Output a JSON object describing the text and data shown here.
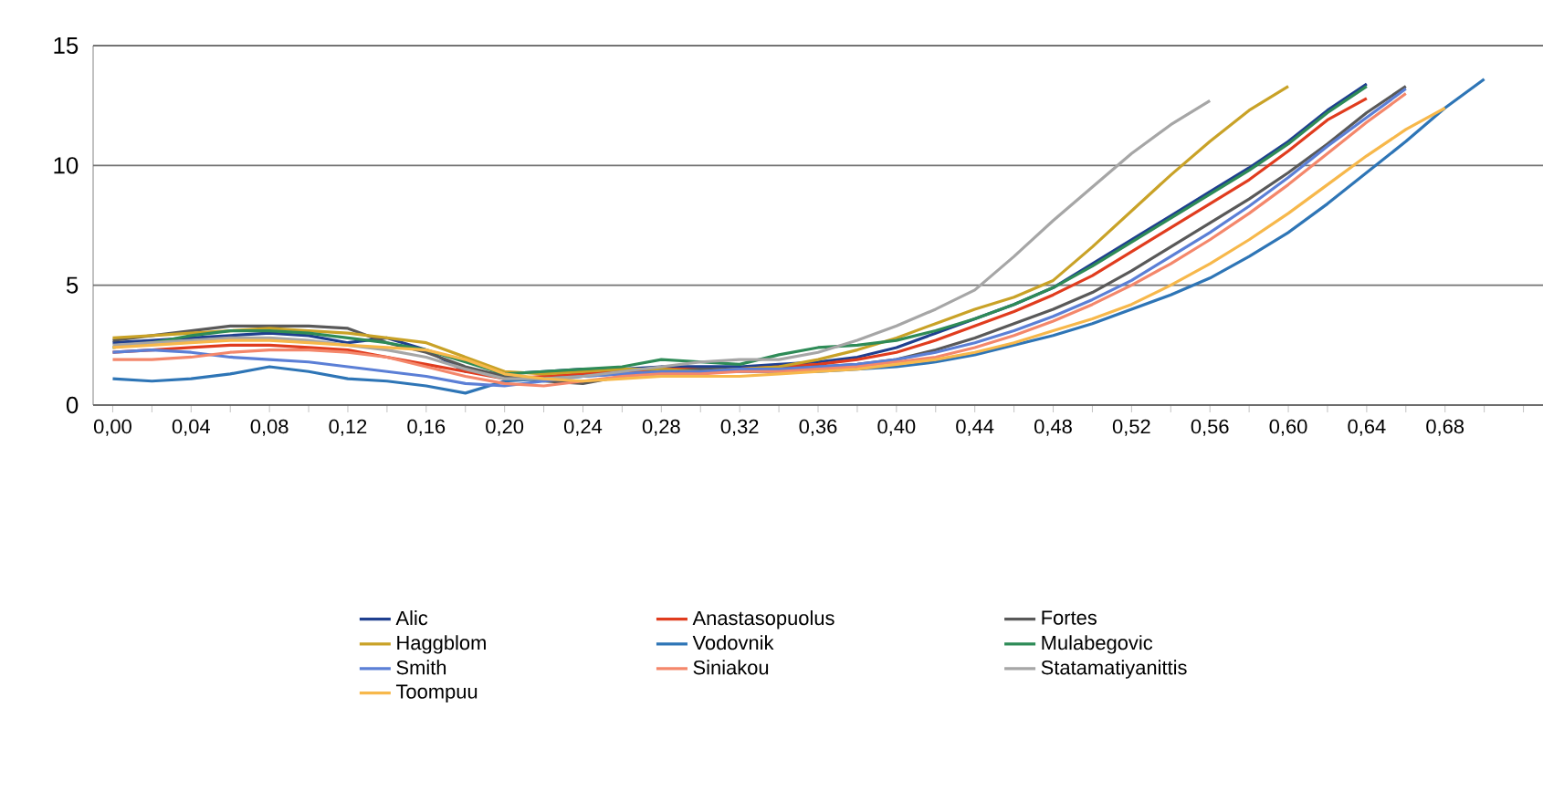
{
  "chart_data": {
    "type": "line",
    "categories": [
      "0,00",
      null,
      "0,04",
      null,
      "0,08",
      null,
      "0,12",
      null,
      "0,16",
      null,
      "0,20",
      null,
      "0,24",
      null,
      "0,28",
      null,
      "0,32",
      null,
      "0,36",
      null,
      "0,40",
      null,
      "0,44",
      null,
      "0,48",
      null,
      "0,52",
      null,
      "0,56",
      null,
      "0,60",
      null,
      "0,64",
      null,
      "0,68",
      null,
      null
    ],
    "ylim": [
      0,
      15
    ],
    "yticks": [
      0,
      5,
      10,
      15
    ],
    "grid": "y",
    "legend": "bottom",
    "series": [
      {
        "name": "Alic",
        "color": "#1f3f8f",
        "values": [
          2.6,
          2.7,
          2.8,
          2.9,
          3.0,
          2.9,
          2.6,
          2.8,
          2.3,
          1.4,
          1.3,
          1.4,
          1.5,
          1.5,
          1.6,
          1.6,
          1.6,
          1.7,
          1.8,
          2.0,
          2.4,
          3.0,
          3.6,
          4.2,
          4.9,
          5.9,
          6.9,
          7.9,
          8.9,
          9.9,
          11.0,
          12.3,
          13.4,
          null,
          null,
          null,
          null
        ]
      },
      {
        "name": "Anastasopuolus",
        "color": "#e03c1e",
        "values": [
          2.2,
          2.3,
          2.4,
          2.5,
          2.5,
          2.4,
          2.3,
          2.0,
          1.7,
          1.4,
          1.1,
          1.2,
          1.3,
          1.4,
          1.5,
          1.5,
          1.5,
          1.6,
          1.7,
          1.9,
          2.2,
          2.7,
          3.3,
          3.9,
          4.6,
          5.4,
          6.4,
          7.4,
          8.4,
          9.4,
          10.6,
          11.9,
          12.8,
          null,
          null,
          null,
          null
        ]
      },
      {
        "name": "Fortes",
        "color": "#595959",
        "values": [
          2.7,
          2.9,
          3.1,
          3.3,
          3.3,
          3.3,
          3.2,
          2.6,
          2.2,
          1.6,
          1.2,
          1.0,
          0.9,
          1.2,
          1.4,
          1.5,
          1.5,
          1.5,
          1.6,
          1.7,
          1.9,
          2.3,
          2.8,
          3.4,
          4.0,
          4.7,
          5.6,
          6.6,
          7.6,
          8.6,
          9.7,
          10.9,
          12.2,
          13.3,
          null,
          null,
          null
        ]
      },
      {
        "name": "Haggblom",
        "color": "#c9a227",
        "values": [
          2.8,
          2.9,
          3.0,
          3.1,
          3.2,
          3.1,
          3.0,
          2.8,
          2.6,
          2.0,
          1.4,
          1.3,
          1.4,
          1.5,
          1.5,
          1.4,
          1.5,
          1.6,
          1.9,
          2.3,
          2.8,
          3.4,
          4.0,
          4.5,
          5.2,
          6.6,
          8.1,
          9.6,
          11.0,
          12.3,
          13.3,
          null,
          null,
          null,
          null,
          null,
          null
        ]
      },
      {
        "name": "Vodovnik",
        "color": "#2e75b6",
        "values": [
          1.1,
          1.0,
          1.1,
          1.3,
          1.6,
          1.4,
          1.1,
          1.0,
          0.8,
          0.5,
          1.0,
          1.1,
          1.2,
          1.3,
          1.4,
          1.4,
          1.4,
          1.4,
          1.4,
          1.5,
          1.6,
          1.8,
          2.1,
          2.5,
          2.9,
          3.4,
          4.0,
          4.6,
          5.3,
          6.2,
          7.2,
          8.4,
          9.7,
          11.0,
          12.4,
          13.6,
          null
        ]
      },
      {
        "name": "Mulabegovic",
        "color": "#2e8b57",
        "values": [
          2.4,
          2.6,
          2.9,
          3.1,
          3.1,
          3.0,
          2.8,
          2.6,
          2.3,
          1.8,
          1.3,
          1.4,
          1.5,
          1.6,
          1.9,
          1.8,
          1.7,
          2.1,
          2.4,
          2.5,
          2.7,
          3.1,
          3.6,
          4.2,
          4.9,
          5.8,
          6.8,
          7.8,
          8.8,
          9.8,
          10.9,
          12.2,
          13.3,
          null,
          null,
          null,
          null
        ]
      },
      {
        "name": "Smith",
        "color": "#5b7fd6",
        "values": [
          2.2,
          2.3,
          2.2,
          2.0,
          1.9,
          1.8,
          1.6,
          1.4,
          1.2,
          0.9,
          0.8,
          1.0,
          1.2,
          1.3,
          1.4,
          1.4,
          1.5,
          1.5,
          1.6,
          1.7,
          1.9,
          2.2,
          2.6,
          3.1,
          3.7,
          4.4,
          5.2,
          6.2,
          7.2,
          8.3,
          9.5,
          10.8,
          12.0,
          13.2,
          null,
          null,
          null
        ]
      },
      {
        "name": "Siniakou",
        "color": "#f4876b",
        "values": [
          1.9,
          1.9,
          2.0,
          2.2,
          2.3,
          2.3,
          2.2,
          2.0,
          1.6,
          1.2,
          0.9,
          0.8,
          1.0,
          1.2,
          1.3,
          1.3,
          1.4,
          1.4,
          1.5,
          1.6,
          1.8,
          2.0,
          2.4,
          2.9,
          3.5,
          4.2,
          5.0,
          5.9,
          6.9,
          8.0,
          9.2,
          10.5,
          11.8,
          13.0,
          null,
          null,
          null
        ]
      },
      {
        "name": "Statamatiyanittis",
        "color": "#a6a6a6",
        "values": [
          2.5,
          2.6,
          2.7,
          2.8,
          2.8,
          2.7,
          2.5,
          2.3,
          2.0,
          1.5,
          1.1,
          1.1,
          1.2,
          1.4,
          1.6,
          1.8,
          1.9,
          1.9,
          2.2,
          2.7,
          3.3,
          4.0,
          4.8,
          6.2,
          7.7,
          9.1,
          10.5,
          11.7,
          12.7,
          null,
          null,
          null,
          null,
          null,
          null,
          null,
          null
        ]
      },
      {
        "name": "Toompuu",
        "color": "#f7b84b",
        "values": [
          2.4,
          2.5,
          2.6,
          2.7,
          2.7,
          2.6,
          2.5,
          2.4,
          2.3,
          1.9,
          1.3,
          1.1,
          1.0,
          1.1,
          1.2,
          1.2,
          1.2,
          1.3,
          1.4,
          1.5,
          1.7,
          1.9,
          2.2,
          2.6,
          3.1,
          3.6,
          4.2,
          5.0,
          5.9,
          6.9,
          8.0,
          9.2,
          10.4,
          11.5,
          12.4,
          null,
          null
        ]
      }
    ]
  }
}
